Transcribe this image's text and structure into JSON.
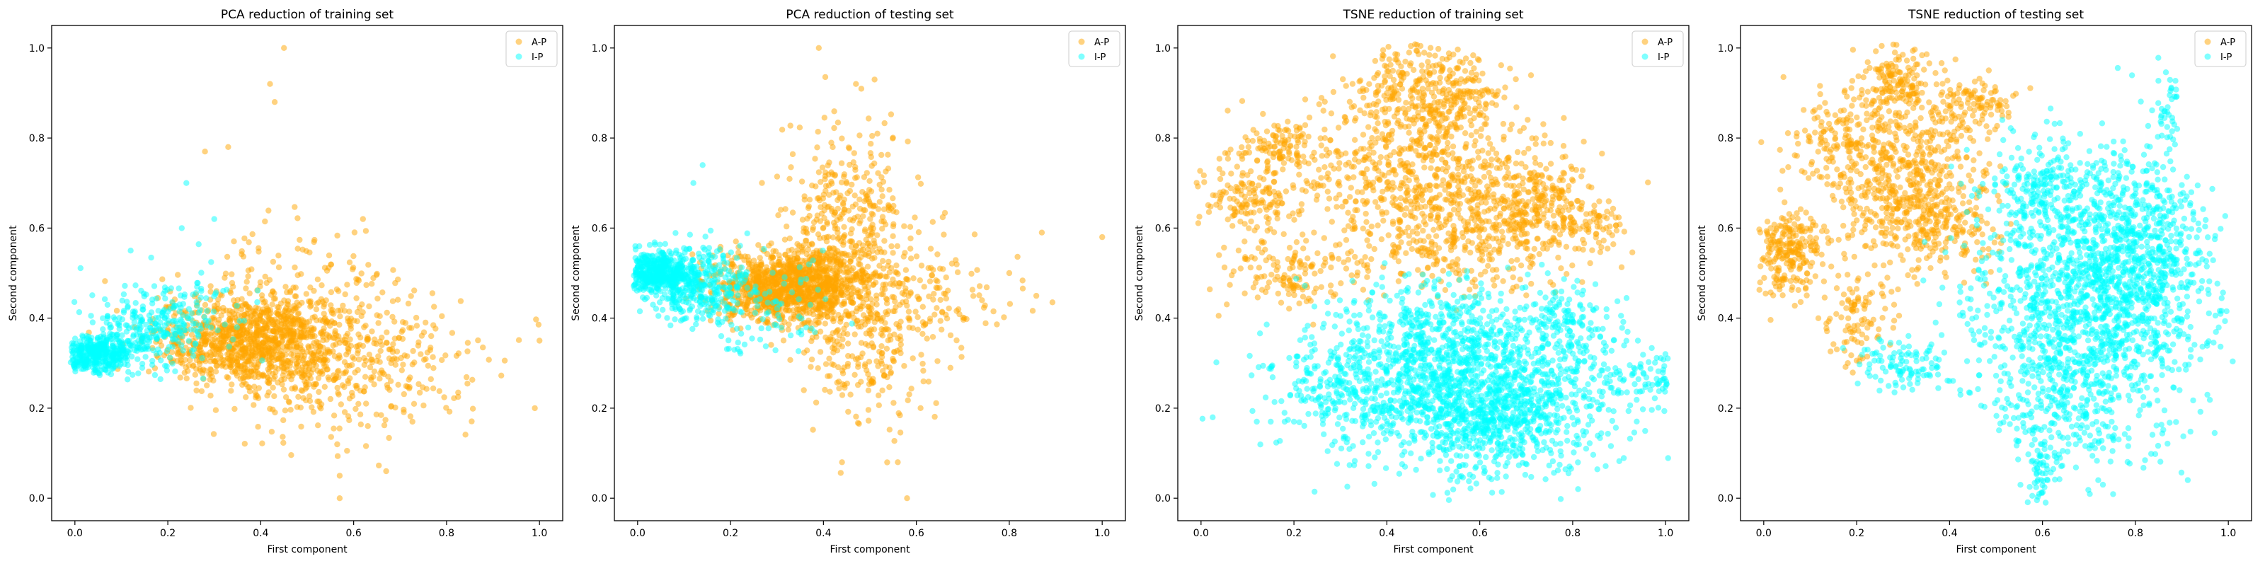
{
  "chart_data": [
    {
      "type": "scatter",
      "title": "PCA reduction of training set",
      "xlabel": "First component",
      "ylabel": "Second component",
      "xlim": [
        -0.05,
        1.05
      ],
      "ylim": [
        -0.05,
        1.05
      ],
      "xticks": [
        0.0,
        0.2,
        0.4,
        0.6,
        0.8,
        1.0
      ],
      "yticks": [
        0.0,
        0.2,
        0.4,
        0.6,
        0.8,
        1.0
      ],
      "legend": "top-right",
      "grid": false,
      "series": [
        {
          "name": "A-P",
          "color": "#FFA500",
          "points": [
            [
              0.45,
              1.0
            ],
            [
              0.43,
              0.88
            ],
            [
              0.42,
              0.92
            ],
            [
              0.62,
              0.62
            ],
            [
              0.33,
              0.78
            ],
            [
              0.28,
              0.77
            ],
            [
              0.57,
              0.0
            ],
            [
              0.57,
              0.05
            ],
            [
              0.67,
              0.06
            ],
            [
              1.0,
              0.35
            ],
            [
              0.99,
              0.2
            ]
          ],
          "clusters": [
            [
              0.38,
              0.35,
              0.1,
              0.05,
              1000
            ],
            [
              0.55,
              0.32,
              0.13,
              0.09,
              400
            ],
            [
              0.47,
              0.45,
              0.1,
              0.08,
              100
            ],
            [
              0.75,
              0.3,
              0.12,
              0.06,
              70
            ]
          ]
        },
        {
          "name": "I-P",
          "color": "#00FFFF",
          "points": [
            [
              0.24,
              0.7
            ],
            [
              0.23,
              0.6
            ],
            [
              0.3,
              0.62
            ],
            [
              0.12,
              0.55
            ]
          ],
          "clusters": [
            [
              0.05,
              0.32,
              0.04,
              0.02,
              400
            ],
            [
              0.16,
              0.37,
              0.07,
              0.04,
              250
            ],
            [
              0.25,
              0.42,
              0.07,
              0.05,
              60
            ]
          ]
        }
      ]
    },
    {
      "type": "scatter",
      "title": "PCA reduction of testing set",
      "xlabel": "First component",
      "ylabel": "Second component",
      "xlim": [
        -0.05,
        1.05
      ],
      "ylim": [
        -0.05,
        1.05
      ],
      "xticks": [
        0.0,
        0.2,
        0.4,
        0.6,
        0.8,
        1.0
      ],
      "yticks": [
        0.0,
        0.2,
        0.4,
        0.6,
        0.8,
        1.0
      ],
      "legend": "top-right",
      "grid": false,
      "series": [
        {
          "name": "A-P",
          "color": "#FFA500",
          "points": [
            [
              0.39,
              1.0
            ],
            [
              0.51,
              0.93
            ],
            [
              0.47,
              0.92
            ],
            [
              1.0,
              0.58
            ],
            [
              0.87,
              0.59
            ],
            [
              0.8,
              0.5
            ],
            [
              0.58,
              0.0
            ],
            [
              0.56,
              0.08
            ],
            [
              0.44,
              0.08
            ]
          ],
          "clusters": [
            [
              0.33,
              0.47,
              0.08,
              0.04,
              1200
            ],
            [
              0.45,
              0.6,
              0.07,
              0.12,
              400
            ],
            [
              0.5,
              0.35,
              0.07,
              0.1,
              250
            ],
            [
              0.62,
              0.45,
              0.1,
              0.06,
              120
            ]
          ]
        },
        {
          "name": "I-P",
          "color": "#00FFFF",
          "points": [
            [
              0.14,
              0.74
            ],
            [
              0.12,
              0.7
            ],
            [
              0.18,
              0.36
            ]
          ],
          "clusters": [
            [
              0.04,
              0.5,
              0.04,
              0.025,
              500
            ],
            [
              0.13,
              0.47,
              0.06,
              0.04,
              300
            ],
            [
              0.27,
              0.42,
              0.08,
              0.06,
              90
            ]
          ]
        }
      ]
    },
    {
      "type": "scatter",
      "title": "TSNE reduction of training set",
      "xlabel": "First component",
      "ylabel": "Second component",
      "xlim": [
        -0.05,
        1.05
      ],
      "ylim": [
        -0.05,
        1.05
      ],
      "xticks": [
        0.0,
        0.2,
        0.4,
        0.6,
        0.8,
        1.0
      ],
      "yticks": [
        0.0,
        0.2,
        0.4,
        0.6,
        0.8,
        1.0
      ],
      "legend": "top-right",
      "grid": false,
      "series": [
        {
          "name": "A-P",
          "color": "#FFA500",
          "points": [],
          "clusters": [
            [
              0.5,
              0.9,
              0.08,
              0.06,
              400
            ],
            [
              0.42,
              0.72,
              0.13,
              0.08,
              500
            ],
            [
              0.63,
              0.65,
              0.1,
              0.07,
              300
            ],
            [
              0.1,
              0.67,
              0.05,
              0.04,
              150
            ],
            [
              0.17,
              0.78,
              0.04,
              0.03,
              100
            ],
            [
              0.75,
              0.65,
              0.06,
              0.05,
              150
            ],
            [
              0.2,
              0.5,
              0.08,
              0.04,
              150
            ],
            [
              0.55,
              0.55,
              0.12,
              0.05,
              200
            ],
            [
              0.85,
              0.6,
              0.03,
              0.03,
              50
            ]
          ]
        },
        {
          "name": "I-P",
          "color": "#00FFFF",
          "points": [
            [
              0.12,
              0.17
            ],
            [
              0.15,
              0.17
            ],
            [
              0.18,
              0.17
            ],
            [
              0.2,
              0.17
            ]
          ],
          "clusters": [
            [
              0.55,
              0.26,
              0.16,
              0.09,
              1300
            ],
            [
              0.65,
              0.18,
              0.1,
              0.07,
              500
            ],
            [
              0.8,
              0.38,
              0.05,
              0.05,
              120
            ],
            [
              0.3,
              0.25,
              0.07,
              0.06,
              150
            ],
            [
              0.95,
              0.26,
              0.05,
              0.03,
              80
            ],
            [
              0.5,
              0.4,
              0.1,
              0.04,
              150
            ]
          ]
        }
      ]
    },
    {
      "type": "scatter",
      "title": "TSNE reduction of testing set",
      "xlabel": "First component",
      "ylabel": "Second component",
      "xlim": [
        -0.05,
        1.05
      ],
      "ylim": [
        -0.05,
        1.05
      ],
      "xticks": [
        0.0,
        0.2,
        0.4,
        0.6,
        0.8,
        1.0
      ],
      "yticks": [
        0.0,
        0.2,
        0.4,
        0.6,
        0.8,
        1.0
      ],
      "legend": "top-right",
      "grid": false,
      "series": [
        {
          "name": "A-P",
          "color": "#FFA500",
          "points": [],
          "clusters": [
            [
              0.3,
              0.72,
              0.09,
              0.1,
              600
            ],
            [
              0.28,
              0.93,
              0.05,
              0.04,
              150
            ],
            [
              0.05,
              0.55,
              0.04,
              0.05,
              250
            ],
            [
              0.45,
              0.87,
              0.05,
              0.03,
              100
            ],
            [
              0.2,
              0.4,
              0.04,
              0.05,
              100
            ],
            [
              0.38,
              0.6,
              0.06,
              0.05,
              150
            ],
            [
              0.15,
              0.8,
              0.05,
              0.05,
              100
            ]
          ]
        },
        {
          "name": "I-P",
          "color": "#00FFFF",
          "points": [
            [
              0.72,
              0.04
            ],
            [
              0.73,
              0.03
            ]
          ],
          "clusters": [
            [
              0.7,
              0.45,
              0.13,
              0.15,
              1500
            ],
            [
              0.8,
              0.55,
              0.07,
              0.1,
              400
            ],
            [
              0.65,
              0.2,
              0.07,
              0.08,
              200
            ],
            [
              0.6,
              0.7,
              0.05,
              0.05,
              150
            ],
            [
              0.87,
              0.85,
              0.01,
              0.05,
              40
            ],
            [
              0.3,
              0.3,
              0.05,
              0.03,
              100
            ],
            [
              0.6,
              0.05,
              0.02,
              0.04,
              50
            ]
          ]
        }
      ]
    }
  ]
}
